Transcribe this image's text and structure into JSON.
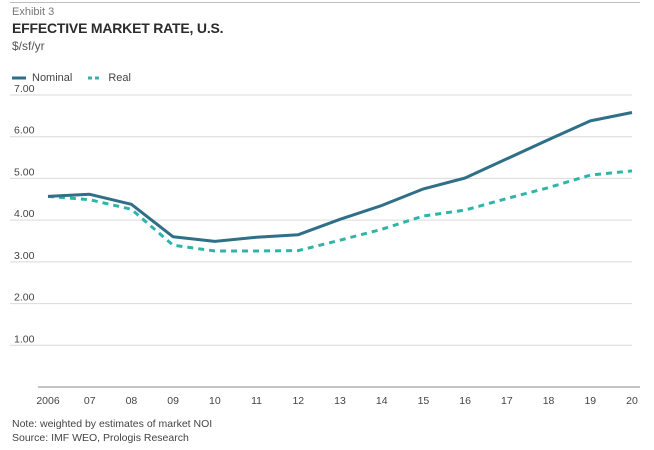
{
  "header": {
    "exhibit": "Exhibit 3",
    "title": "EFFECTIVE MARKET RATE, U.S.",
    "subtitle": "$/sf/yr"
  },
  "footer": {
    "note": "Note: weighted by estimates of market NOI",
    "source": "Source: IMF WEO, Prologis Research"
  },
  "colors": {
    "nominal": "#2f6f87",
    "real": "#2fb5a8",
    "grid": "#d9d9d9",
    "axis": "#888888"
  },
  "chart_data": {
    "type": "line",
    "title": "EFFECTIVE MARKET RATE, U.S.",
    "ylabel": "$/sf/yr",
    "xlabel": "",
    "categories": [
      "2006",
      "07",
      "08",
      "09",
      "10",
      "11",
      "12",
      "13",
      "14",
      "15",
      "16",
      "17",
      "18",
      "19",
      "20"
    ],
    "y_ticks": [
      "1.00",
      "2.00",
      "3.00",
      "4.00",
      "5.00",
      "6.00",
      "7.00"
    ],
    "ylim": [
      0,
      7
    ],
    "legend_position": "top-left",
    "series": [
      {
        "name": "Nominal",
        "style": "solid",
        "values": [
          4.57,
          4.62,
          4.38,
          3.6,
          3.49,
          3.59,
          3.65,
          4.02,
          4.35,
          4.75,
          5.01,
          5.47,
          5.93,
          6.38,
          6.58
        ]
      },
      {
        "name": "Real",
        "style": "dashed",
        "values": [
          4.57,
          4.49,
          4.26,
          3.4,
          3.26,
          3.26,
          3.27,
          3.52,
          3.78,
          4.1,
          4.24,
          4.52,
          4.78,
          5.08,
          5.18
        ]
      }
    ]
  }
}
